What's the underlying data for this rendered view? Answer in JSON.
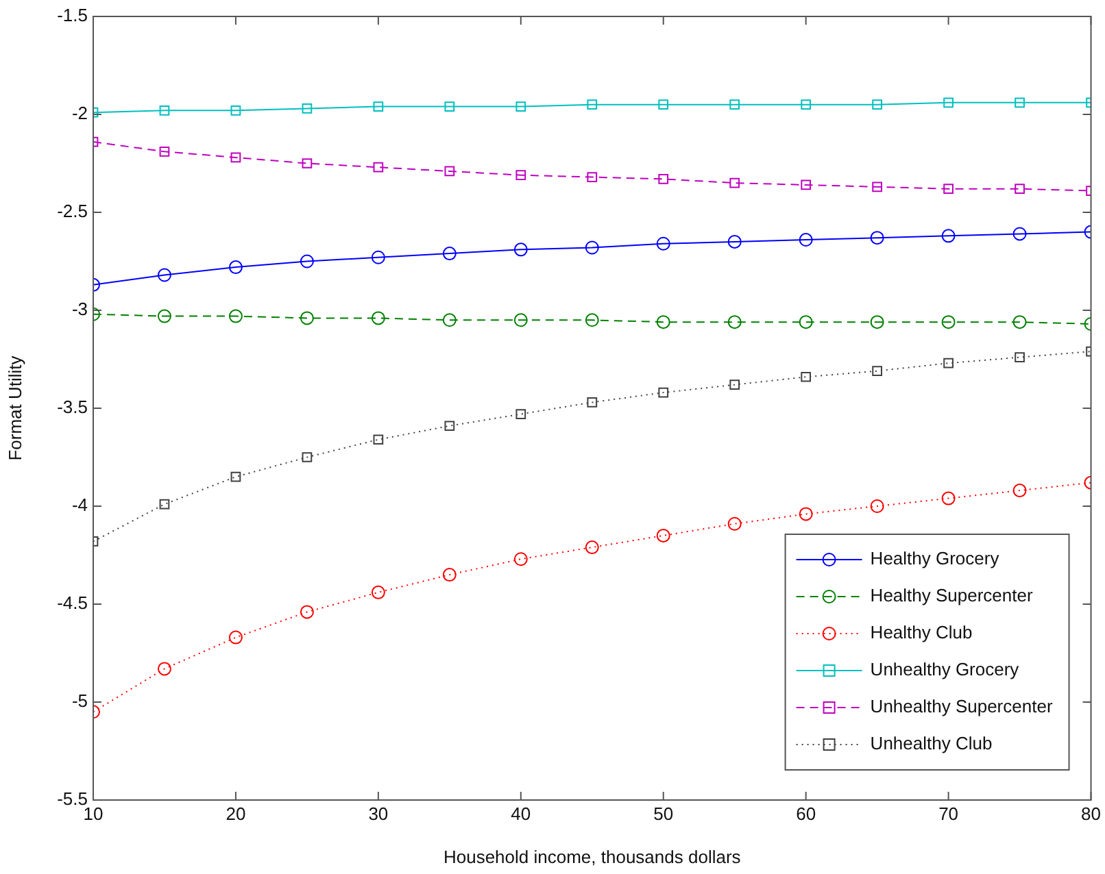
{
  "chart_data": {
    "type": "line",
    "xlabel": "Household income, thousands dollars",
    "ylabel": "Format Utility",
    "x": [
      10,
      15,
      20,
      25,
      30,
      35,
      40,
      45,
      50,
      55,
      60,
      65,
      70,
      75,
      80
    ],
    "xlim": [
      10,
      80
    ],
    "xticks": [
      10,
      20,
      30,
      40,
      50,
      60,
      70,
      80
    ],
    "ylim": [
      -5.5,
      -1.5
    ],
    "yticks": [
      -5.5,
      -5,
      -4.5,
      -4,
      -3.5,
      -3,
      -2.5,
      -2,
      -1.5
    ],
    "grid": false,
    "legend": "bottom right",
    "series": [
      {
        "name": "Healthy Grocery",
        "color": "#0000ff",
        "marker": "circle",
        "line_style": "solid",
        "values": [
          -2.87,
          -2.82,
          -2.78,
          -2.75,
          -2.73,
          -2.71,
          -2.69,
          -2.68,
          -2.66,
          -2.65,
          -2.64,
          -2.63,
          -2.62,
          -2.61,
          -2.6
        ]
      },
      {
        "name": "Healthy Supercenter",
        "color": "#008000",
        "marker": "circle",
        "line_style": "dashed",
        "values": [
          -3.02,
          -3.03,
          -3.03,
          -3.04,
          -3.04,
          -3.05,
          -3.05,
          -3.05,
          -3.06,
          -3.06,
          -3.06,
          -3.06,
          -3.06,
          -3.06,
          -3.07
        ]
      },
      {
        "name": "Healthy Club",
        "color": "#ff0000",
        "marker": "circle",
        "line_style": "dotted",
        "values": [
          -5.05,
          -4.83,
          -4.67,
          -4.54,
          -4.44,
          -4.35,
          -4.27,
          -4.21,
          -4.15,
          -4.09,
          -4.04,
          -4.0,
          -3.96,
          -3.92,
          -3.88
        ]
      },
      {
        "name": "Unhealthy Grocery",
        "color": "#00bfbf",
        "marker": "square",
        "line_style": "solid",
        "values": [
          -1.99,
          -1.98,
          -1.98,
          -1.97,
          -1.96,
          -1.96,
          -1.96,
          -1.95,
          -1.95,
          -1.95,
          -1.95,
          -1.95,
          -1.94,
          -1.94,
          -1.94
        ]
      },
      {
        "name": "Unhealthy Supercenter",
        "color": "#bf00bf",
        "marker": "square",
        "line_style": "dashed",
        "values": [
          -2.14,
          -2.19,
          -2.22,
          -2.25,
          -2.27,
          -2.29,
          -2.31,
          -2.32,
          -2.33,
          -2.35,
          -2.36,
          -2.37,
          -2.38,
          -2.38,
          -2.39
        ]
      },
      {
        "name": "Unhealthy Club",
        "color": "#404040",
        "marker": "square",
        "line_style": "dotted",
        "values": [
          -4.18,
          -3.99,
          -3.85,
          -3.75,
          -3.66,
          -3.59,
          -3.53,
          -3.47,
          -3.42,
          -3.38,
          -3.34,
          -3.31,
          -3.27,
          -3.24,
          -3.21
        ]
      }
    ]
  }
}
